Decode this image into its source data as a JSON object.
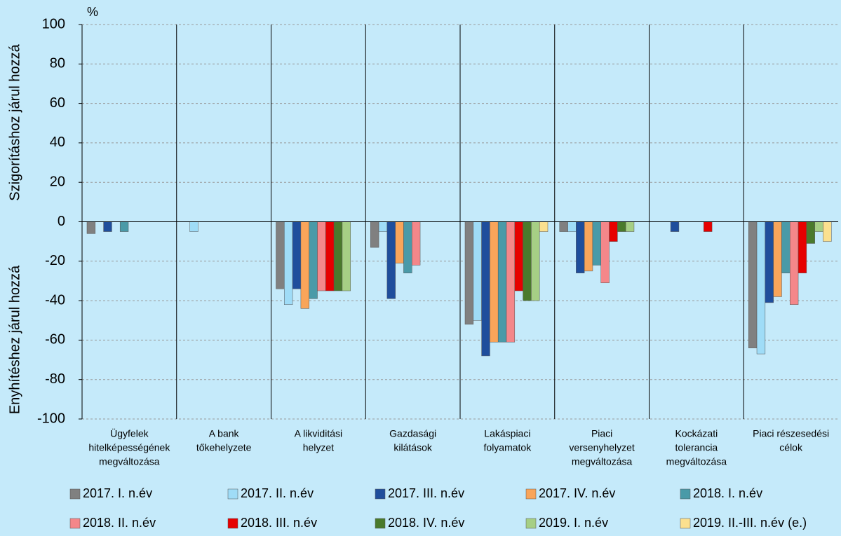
{
  "chart_data": {
    "type": "bar",
    "unit": "%",
    "y_label_top": "Szigorításhoz járul hozzá",
    "y_label_bottom": "Enyhítéshez járul hozzá",
    "categories": [
      [
        "Ügyfelek",
        "hitelképességének",
        "megváltozása"
      ],
      [
        "A bank",
        "tőkehelyzete"
      ],
      [
        "A likviditási",
        "helyzet"
      ],
      [
        "Gazdasági",
        "kilátások"
      ],
      [
        "Lakáspiaci",
        "folyamatok"
      ],
      [
        "Piaci",
        "versenyhelyzet",
        "megváltozása"
      ],
      [
        "Kockázati",
        "tolerancia",
        "megváltozása"
      ],
      [
        "Piaci részesedési",
        "célok"
      ]
    ],
    "series": [
      {
        "name": "2017. I. n.év",
        "color": "#808080",
        "values": [
          -6,
          0,
          -34,
          -13,
          -52,
          -5,
          0,
          -64
        ]
      },
      {
        "name": "2017. II. n.év",
        "color": "#9fdcf7",
        "values": [
          0,
          -5,
          -42,
          -5,
          -50,
          -5,
          0,
          -67
        ]
      },
      {
        "name": "2017. III. n.év",
        "color": "#1f4e9c",
        "values": [
          -5,
          0,
          -34,
          -39,
          -68,
          -26,
          -5,
          -41
        ]
      },
      {
        "name": "2017. IV. n.év",
        "color": "#f9a55a",
        "values": [
          0,
          0,
          -44,
          -21,
          -61,
          -25,
          0,
          -38
        ]
      },
      {
        "name": "2018. I. n.év",
        "color": "#4a9aa8",
        "values": [
          -5,
          0,
          -39,
          -26,
          -61,
          -22,
          0,
          -26
        ]
      },
      {
        "name": "2018. II. n.év",
        "color": "#f4878a",
        "values": [
          0,
          0,
          -35,
          -22,
          -61,
          -31,
          0,
          -42
        ]
      },
      {
        "name": "2018. III. n.év",
        "color": "#e60000",
        "values": [
          0,
          0,
          -35,
          0,
          -35,
          -10,
          -5,
          -26
        ]
      },
      {
        "name": "2018. IV. n.év",
        "color": "#4a7a2c",
        "values": [
          0,
          0,
          -35,
          0,
          -40,
          -5,
          0,
          -11
        ]
      },
      {
        "name": "2019. I. n.év",
        "color": "#a6cf85",
        "values": [
          0,
          0,
          -35,
          0,
          -40,
          -5,
          0,
          -5
        ]
      },
      {
        "name": "2019. II.-III. n.év (e.)",
        "color": "#fbe08f",
        "values": [
          0,
          0,
          0,
          0,
          -5,
          0,
          0,
          -10
        ]
      }
    ],
    "ylim": [
      -100,
      100
    ],
    "yticks": [
      -100,
      -80,
      -60,
      -40,
      -20,
      0,
      20,
      40,
      60,
      80,
      100
    ],
    "grid": true
  }
}
